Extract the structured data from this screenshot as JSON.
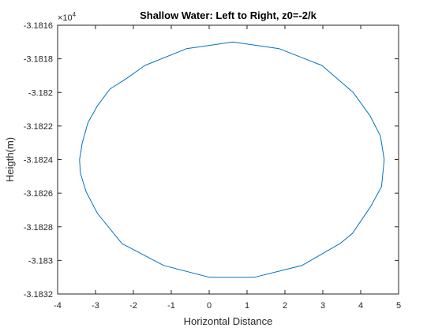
{
  "chart_data": {
    "type": "line",
    "title": "Shallow Water: Left to Right, z0=-2/k",
    "xlabel": "Horizontal Distance",
    "ylabel": "Heigth(m)",
    "xlim": [
      -4,
      5
    ],
    "ylim": [
      -3.1832,
      -3.1816
    ],
    "y_exponent_label": "×10",
    "y_exponent_power": "4",
    "x_ticks": [
      -4,
      -3,
      -2,
      -1,
      0,
      1,
      2,
      3,
      4,
      5
    ],
    "x_tick_labels": [
      "-4",
      "-3",
      "-2",
      "-1",
      "0",
      "1",
      "2",
      "3",
      "4",
      "5"
    ],
    "y_ticks": [
      -3.1816,
      -3.1818,
      -3.182,
      -3.1822,
      -3.1824,
      -3.1826,
      -3.1828,
      -3.183,
      -3.1832
    ],
    "y_tick_labels": [
      "-3.1816",
      "-3.1818",
      "-3.182",
      "-3.1822",
      "-3.1824",
      "-3.1826",
      "-3.1828",
      "-3.183",
      "-3.1832"
    ],
    "grid": false,
    "line_color": "#0072BD",
    "series": [
      {
        "x": [
          0.62,
          1.85,
          2.98,
          3.8,
          4.25,
          4.52,
          4.62,
          4.55,
          4.26,
          3.78,
          3.45,
          2.45,
          1.2,
          0.0,
          -1.2,
          -2.3,
          -2.95,
          -3.25,
          -3.4,
          -3.42,
          -3.35,
          -3.2,
          -2.95,
          -2.62,
          -2.2,
          -1.7,
          -0.6,
          0.62
        ],
        "y": [
          -3.1817,
          -3.18174,
          -3.18184,
          -3.182,
          -3.18214,
          -3.18226,
          -3.1824,
          -3.18256,
          -3.18268,
          -3.18284,
          -3.1829,
          -3.18303,
          -3.1831,
          -3.1831,
          -3.18303,
          -3.1829,
          -3.18272,
          -3.18259,
          -3.18248,
          -3.1824,
          -3.1823,
          -3.18218,
          -3.18208,
          -3.18198,
          -3.18192,
          -3.18184,
          -3.18174,
          -3.1817
        ]
      }
    ]
  }
}
